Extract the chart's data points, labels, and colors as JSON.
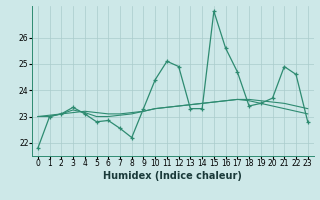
{
  "x": [
    0,
    1,
    2,
    3,
    4,
    5,
    6,
    7,
    8,
    9,
    10,
    11,
    12,
    13,
    14,
    15,
    16,
    17,
    18,
    19,
    20,
    21,
    22,
    23
  ],
  "y_main": [
    21.8,
    23.0,
    23.1,
    23.35,
    23.1,
    22.8,
    22.85,
    22.55,
    22.2,
    23.3,
    24.4,
    25.1,
    24.9,
    23.3,
    23.3,
    27.0,
    25.6,
    24.7,
    23.4,
    23.5,
    23.7,
    24.9,
    24.6,
    22.8
  ],
  "y_trend1": [
    23.0,
    23.0,
    23.1,
    23.15,
    23.2,
    23.15,
    23.1,
    23.1,
    23.15,
    23.2,
    23.3,
    23.35,
    23.4,
    23.45,
    23.5,
    23.55,
    23.6,
    23.65,
    23.65,
    23.6,
    23.55,
    23.5,
    23.4,
    23.3
  ],
  "y_trend2": [
    23.0,
    23.05,
    23.1,
    23.25,
    23.15,
    23.0,
    23.0,
    23.05,
    23.1,
    23.2,
    23.3,
    23.35,
    23.4,
    23.45,
    23.5,
    23.55,
    23.6,
    23.65,
    23.6,
    23.5,
    23.4,
    23.3,
    23.2,
    23.1
  ],
  "line_color": "#2e8b71",
  "bg_color": "#cde8e8",
  "grid_color": "#aacccc",
  "ylim": [
    21.5,
    27.2
  ],
  "yticks": [
    22,
    23,
    24,
    25,
    26
  ],
  "xlabel": "Humidex (Indice chaleur)",
  "tick_fontsize": 5.5,
  "label_fontsize": 7
}
